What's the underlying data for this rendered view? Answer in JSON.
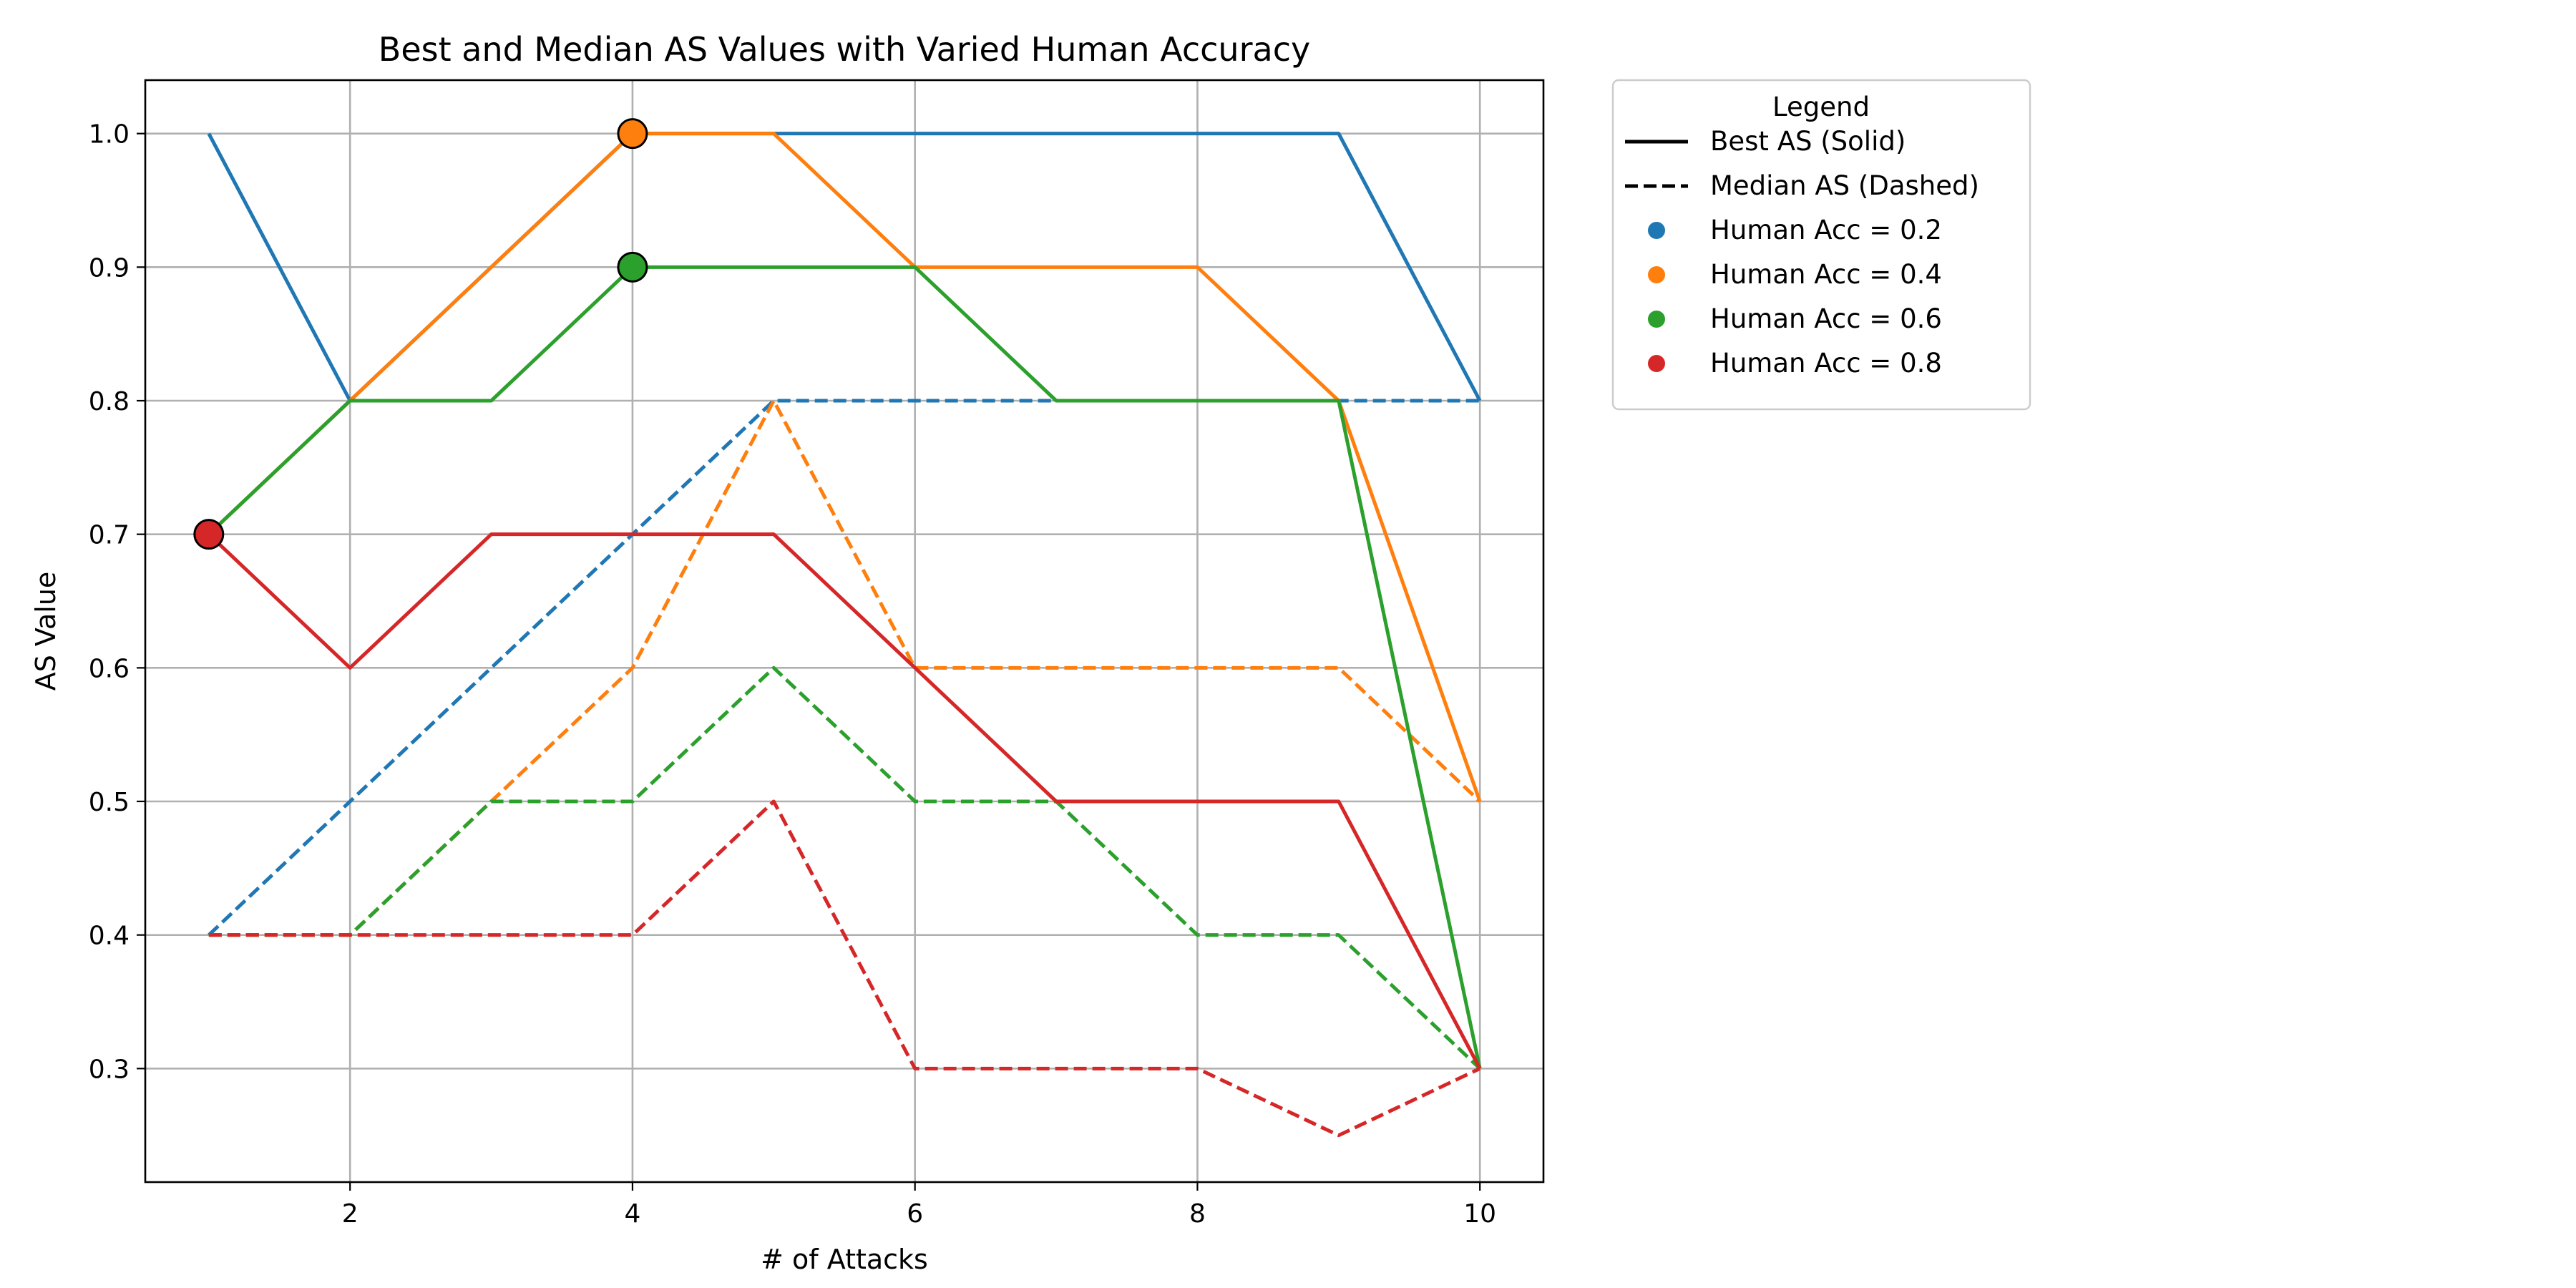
{
  "chart_data": {
    "type": "line",
    "title": "Best and Median AS Values with Varied Human Accuracy",
    "xlabel": "# of Attacks",
    "ylabel": "AS Value",
    "x": [
      1,
      2,
      3,
      4,
      5,
      6,
      7,
      8,
      9,
      10
    ],
    "xlim": [
      0.55,
      10.45
    ],
    "ylim": [
      0.215,
      1.04
    ],
    "xticks": [
      2,
      4,
      6,
      8,
      10
    ],
    "yticks": [
      0.3,
      0.4,
      0.5,
      0.6,
      0.7,
      0.8,
      0.9,
      1.0
    ],
    "grid": true,
    "legend": {
      "title": "Legend",
      "placement": "outside-top-right",
      "style_entries": [
        {
          "label": "Best AS (Solid)",
          "dash": "solid"
        },
        {
          "label": "Median AS (Dashed)",
          "dash": "dashed"
        }
      ]
    },
    "series": [
      {
        "name": "Human Acc = 0.2",
        "color": "#1f77b4",
        "best": [
          1.0,
          0.8,
          0.9,
          1.0,
          1.0,
          1.0,
          1.0,
          1.0,
          1.0,
          0.8
        ],
        "median": [
          0.4,
          0.5,
          0.6,
          0.7,
          0.8,
          0.8,
          0.8,
          0.8,
          0.8,
          0.8
        ]
      },
      {
        "name": "Human Acc = 0.4",
        "color": "#ff7f0e",
        "best": [
          0.7,
          0.8,
          0.9,
          1.0,
          1.0,
          0.9,
          0.9,
          0.9,
          0.8,
          0.5
        ],
        "median": [
          0.4,
          0.4,
          0.5,
          0.6,
          0.8,
          0.6,
          0.6,
          0.6,
          0.6,
          0.5
        ],
        "highlight": {
          "x": 4,
          "y": 1.0
        }
      },
      {
        "name": "Human Acc = 0.6",
        "color": "#2ca02c",
        "best": [
          0.7,
          0.8,
          0.8,
          0.9,
          0.9,
          0.9,
          0.8,
          0.8,
          0.8,
          0.3
        ],
        "median": [
          0.4,
          0.4,
          0.5,
          0.5,
          0.6,
          0.5,
          0.5,
          0.4,
          0.4,
          0.3
        ],
        "highlight": {
          "x": 4,
          "y": 0.9
        }
      },
      {
        "name": "Human Acc = 0.8",
        "color": "#d62728",
        "best": [
          0.7,
          0.6,
          0.7,
          0.7,
          0.7,
          0.6,
          0.5,
          0.5,
          0.5,
          0.3
        ],
        "median": [
          0.4,
          0.4,
          0.4,
          0.4,
          0.5,
          0.3,
          0.3,
          0.3,
          0.25,
          0.3
        ],
        "highlight": {
          "x": 1,
          "y": 0.7
        }
      }
    ]
  }
}
